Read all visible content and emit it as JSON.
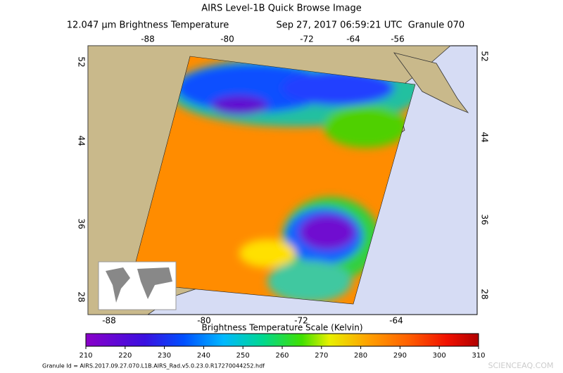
{
  "header": {
    "title": "AIRS Level-1B Quick Browse Image",
    "variable": "12.047 µm Brightness Temperature",
    "time": "Sep 27, 2017 06:59:21 UTC",
    "granule": "Granule 070"
  },
  "map": {
    "top_longitudes": [
      -88,
      -80,
      -72,
      -64,
      -56
    ],
    "bottom_longitudes": [
      -88,
      -80,
      -72,
      -64
    ],
    "left_latitudes": [
      52,
      44,
      36,
      28
    ],
    "right_latitudes": [
      52,
      44,
      36,
      28
    ]
  },
  "colorbar": {
    "title": "Brightness Temperature Scale (Kelvin)",
    "range": [
      210,
      310
    ],
    "ticks": [
      210,
      220,
      230,
      240,
      250,
      260,
      270,
      280,
      290,
      300,
      310
    ]
  },
  "footer": {
    "granule_id": "Granule Id = AIRS.2017.09.27.070.L1B.AIRS_Rad.v5.0.23.0.R17270044252.hdf",
    "watermark": "SCIENCEAQ.COM"
  }
}
